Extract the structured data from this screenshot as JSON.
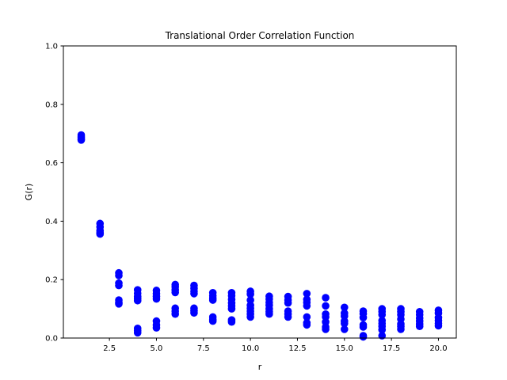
{
  "chart_data": {
    "type": "scatter",
    "title": "Translational Order Correlation Function",
    "xlabel": "r",
    "ylabel": "G(r)",
    "xlim": [
      0.05,
      20.95
    ],
    "ylim": [
      0.0,
      1.0
    ],
    "xticks": [
      2.5,
      5.0,
      7.5,
      10.0,
      12.5,
      15.0,
      17.5,
      20.0
    ],
    "xtick_labels": [
      "2.5",
      "5.0",
      "7.5",
      "10.0",
      "12.5",
      "15.0",
      "17.5",
      "20.0"
    ],
    "yticks": [
      0.0,
      0.2,
      0.4,
      0.6,
      0.8,
      1.0
    ],
    "ytick_labels": [
      "0.0",
      "0.2",
      "0.4",
      "0.6",
      "0.8",
      "1.0"
    ],
    "grid": false,
    "legend": "none",
    "marker_color": "#0000ff",
    "points": [
      {
        "x": 1,
        "y": 0.695
      },
      {
        "x": 1,
        "y": 0.688
      },
      {
        "x": 1,
        "y": 0.682
      },
      {
        "x": 1,
        "y": 0.678
      },
      {
        "x": 2,
        "y": 0.392
      },
      {
        "x": 2,
        "y": 0.38
      },
      {
        "x": 2,
        "y": 0.368
      },
      {
        "x": 2,
        "y": 0.36
      },
      {
        "x": 2,
        "y": 0.356
      },
      {
        "x": 3,
        "y": 0.223
      },
      {
        "x": 3,
        "y": 0.214
      },
      {
        "x": 3,
        "y": 0.188
      },
      {
        "x": 3,
        "y": 0.18
      },
      {
        "x": 3,
        "y": 0.13
      },
      {
        "x": 3,
        "y": 0.122
      },
      {
        "x": 3,
        "y": 0.117
      },
      {
        "x": 4,
        "y": 0.165
      },
      {
        "x": 4,
        "y": 0.153
      },
      {
        "x": 4,
        "y": 0.142
      },
      {
        "x": 4,
        "y": 0.135
      },
      {
        "x": 4,
        "y": 0.128
      },
      {
        "x": 4,
        "y": 0.033
      },
      {
        "x": 4,
        "y": 0.025
      },
      {
        "x": 4,
        "y": 0.018
      },
      {
        "x": 5,
        "y": 0.163
      },
      {
        "x": 5,
        "y": 0.152
      },
      {
        "x": 5,
        "y": 0.142
      },
      {
        "x": 5,
        "y": 0.134
      },
      {
        "x": 5,
        "y": 0.058
      },
      {
        "x": 5,
        "y": 0.045
      },
      {
        "x": 5,
        "y": 0.035
      },
      {
        "x": 6,
        "y": 0.183
      },
      {
        "x": 6,
        "y": 0.175
      },
      {
        "x": 6,
        "y": 0.165
      },
      {
        "x": 6,
        "y": 0.156
      },
      {
        "x": 6,
        "y": 0.102
      },
      {
        "x": 6,
        "y": 0.092
      },
      {
        "x": 6,
        "y": 0.082
      },
      {
        "x": 7,
        "y": 0.18
      },
      {
        "x": 7,
        "y": 0.17
      },
      {
        "x": 7,
        "y": 0.16
      },
      {
        "x": 7,
        "y": 0.152
      },
      {
        "x": 7,
        "y": 0.102
      },
      {
        "x": 7,
        "y": 0.093
      },
      {
        "x": 7,
        "y": 0.086
      },
      {
        "x": 8,
        "y": 0.155
      },
      {
        "x": 8,
        "y": 0.145
      },
      {
        "x": 8,
        "y": 0.136
      },
      {
        "x": 8,
        "y": 0.13
      },
      {
        "x": 8,
        "y": 0.072
      },
      {
        "x": 8,
        "y": 0.064
      },
      {
        "x": 8,
        "y": 0.058
      },
      {
        "x": 9,
        "y": 0.155
      },
      {
        "x": 9,
        "y": 0.145
      },
      {
        "x": 9,
        "y": 0.132
      },
      {
        "x": 9,
        "y": 0.12
      },
      {
        "x": 9,
        "y": 0.11
      },
      {
        "x": 9,
        "y": 0.1
      },
      {
        "x": 9,
        "y": 0.062
      },
      {
        "x": 9,
        "y": 0.055
      },
      {
        "x": 10,
        "y": 0.16
      },
      {
        "x": 10,
        "y": 0.15
      },
      {
        "x": 10,
        "y": 0.13
      },
      {
        "x": 10,
        "y": 0.112
      },
      {
        "x": 10,
        "y": 0.102
      },
      {
        "x": 10,
        "y": 0.092
      },
      {
        "x": 10,
        "y": 0.082
      },
      {
        "x": 10,
        "y": 0.072
      },
      {
        "x": 11,
        "y": 0.143
      },
      {
        "x": 11,
        "y": 0.133
      },
      {
        "x": 11,
        "y": 0.122
      },
      {
        "x": 11,
        "y": 0.112
      },
      {
        "x": 11,
        "y": 0.1
      },
      {
        "x": 11,
        "y": 0.09
      },
      {
        "x": 11,
        "y": 0.082
      },
      {
        "x": 12,
        "y": 0.142
      },
      {
        "x": 12,
        "y": 0.13
      },
      {
        "x": 12,
        "y": 0.12
      },
      {
        "x": 12,
        "y": 0.092
      },
      {
        "x": 12,
        "y": 0.082
      },
      {
        "x": 12,
        "y": 0.072
      },
      {
        "x": 13,
        "y": 0.152
      },
      {
        "x": 13,
        "y": 0.132
      },
      {
        "x": 13,
        "y": 0.122
      },
      {
        "x": 13,
        "y": 0.11
      },
      {
        "x": 13,
        "y": 0.072
      },
      {
        "x": 13,
        "y": 0.052
      },
      {
        "x": 13,
        "y": 0.045
      },
      {
        "x": 14,
        "y": 0.138
      },
      {
        "x": 14,
        "y": 0.11
      },
      {
        "x": 14,
        "y": 0.082
      },
      {
        "x": 14,
        "y": 0.072
      },
      {
        "x": 14,
        "y": 0.055
      },
      {
        "x": 14,
        "y": 0.038
      },
      {
        "x": 14,
        "y": 0.03
      },
      {
        "x": 15,
        "y": 0.105
      },
      {
        "x": 15,
        "y": 0.085
      },
      {
        "x": 15,
        "y": 0.075
      },
      {
        "x": 15,
        "y": 0.058
      },
      {
        "x": 15,
        "y": 0.05
      },
      {
        "x": 15,
        "y": 0.03
      },
      {
        "x": 16,
        "y": 0.092
      },
      {
        "x": 16,
        "y": 0.083
      },
      {
        "x": 16,
        "y": 0.07
      },
      {
        "x": 16,
        "y": 0.045
      },
      {
        "x": 16,
        "y": 0.038
      },
      {
        "x": 16,
        "y": 0.008
      },
      {
        "x": 16,
        "y": 0.004
      },
      {
        "x": 17,
        "y": 0.1
      },
      {
        "x": 17,
        "y": 0.09
      },
      {
        "x": 17,
        "y": 0.08
      },
      {
        "x": 17,
        "y": 0.06
      },
      {
        "x": 17,
        "y": 0.05
      },
      {
        "x": 17,
        "y": 0.04
      },
      {
        "x": 17,
        "y": 0.028
      },
      {
        "x": 17,
        "y": 0.008
      },
      {
        "x": 18,
        "y": 0.1
      },
      {
        "x": 18,
        "y": 0.09
      },
      {
        "x": 18,
        "y": 0.08
      },
      {
        "x": 18,
        "y": 0.065
      },
      {
        "x": 18,
        "y": 0.048
      },
      {
        "x": 18,
        "y": 0.04
      },
      {
        "x": 18,
        "y": 0.03
      },
      {
        "x": 19,
        "y": 0.09
      },
      {
        "x": 19,
        "y": 0.08
      },
      {
        "x": 19,
        "y": 0.068
      },
      {
        "x": 19,
        "y": 0.058
      },
      {
        "x": 19,
        "y": 0.048
      },
      {
        "x": 19,
        "y": 0.04
      },
      {
        "x": 20,
        "y": 0.095
      },
      {
        "x": 20,
        "y": 0.085
      },
      {
        "x": 20,
        "y": 0.07
      },
      {
        "x": 20,
        "y": 0.06
      },
      {
        "x": 20,
        "y": 0.05
      },
      {
        "x": 20,
        "y": 0.042
      }
    ]
  }
}
